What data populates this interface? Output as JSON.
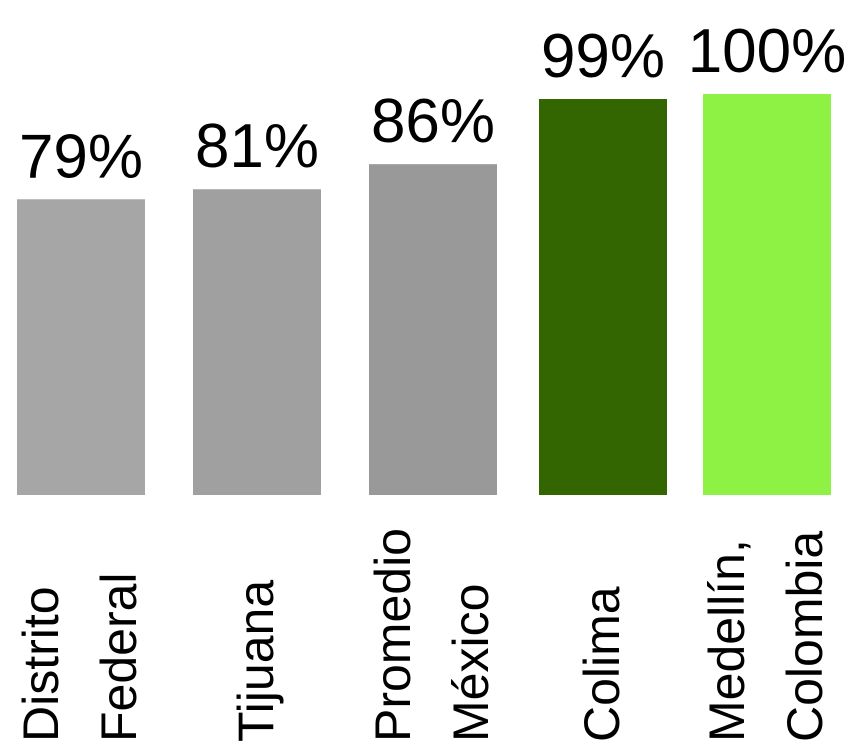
{
  "chart_data": {
    "type": "bar",
    "categories": [
      [
        "Distrito",
        "Federal"
      ],
      [
        "Tijuana"
      ],
      [
        "Promedio",
        "México"
      ],
      [
        "Colima"
      ],
      [
        "Medellín,",
        "Colombia"
      ]
    ],
    "values": [
      79,
      81,
      86,
      99,
      100
    ],
    "value_labels": [
      "79%",
      "81%",
      "86%",
      "99%",
      "100%"
    ],
    "bar_colors": [
      "#a6a6a6",
      "#a0a0a0",
      "#999999",
      "#336600",
      "#8ef244"
    ],
    "ylim": [
      0,
      100
    ],
    "axis_visible": false,
    "grid": false,
    "legend": "none",
    "label_orientation": "vertical"
  }
}
